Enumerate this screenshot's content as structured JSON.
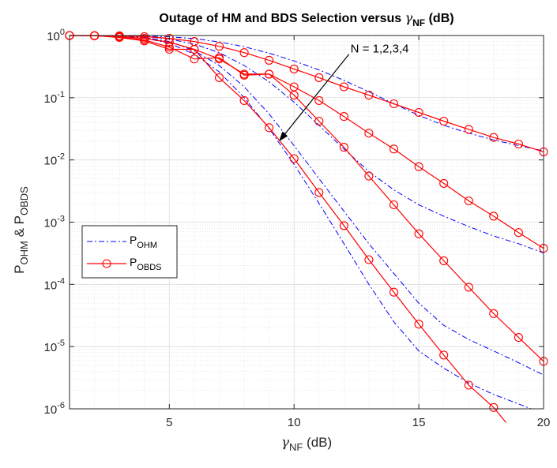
{
  "chart_data": {
    "type": "line",
    "title_parts": [
      "Outage of HM and BDS Selection versus ",
      "γ",
      "NF",
      " (dB)"
    ],
    "xlabel_parts": [
      "γ",
      "NF",
      " (dB)"
    ],
    "ylabel_parts": [
      "P",
      "OHM",
      " & P",
      "OBDS"
    ],
    "xlim": [
      1,
      20
    ],
    "ylim": [
      1e-06,
      1
    ],
    "yscale": "log",
    "xticks": [
      5,
      10,
      15,
      20
    ],
    "xtick_labels": [
      "5",
      "10",
      "15",
      "20"
    ],
    "yticks": [
      1,
      0.1,
      0.01,
      0.001,
      0.0001,
      1e-05,
      1e-06
    ],
    "ytick_labels": [
      {
        "base": "10",
        "exp": "0"
      },
      {
        "base": "10",
        "exp": "-1"
      },
      {
        "base": "10",
        "exp": "-2"
      },
      {
        "base": "10",
        "exp": "-3"
      },
      {
        "base": "10",
        "exp": "-4"
      },
      {
        "base": "10",
        "exp": "-5"
      },
      {
        "base": "10",
        "exp": "-6"
      }
    ],
    "grid": true,
    "legend_position": "mid-left",
    "legend": [
      {
        "base": "P",
        "sub": "OHM",
        "style": "dashdot",
        "color": "#0000ff"
      },
      {
        "base": "P",
        "sub": "OBDS",
        "style": "solid-circle",
        "color": "#ff0000"
      }
    ],
    "annotation": {
      "text": "N = 1,2,3,4",
      "arrow_from": [
        12.2,
        0.5
      ],
      "arrow_to": [
        9.4,
        0.02
      ]
    },
    "colors": {
      "ohm": "#0000ff",
      "obds": "#ff0000"
    },
    "series": [
      {
        "group": "OHM",
        "N": 1,
        "x": [
          1,
          2,
          3,
          4,
          5,
          6,
          7,
          8,
          9,
          10,
          11,
          12,
          13,
          14,
          15,
          16,
          17,
          18,
          19,
          20
        ],
        "y": [
          1.0,
          0.999,
          0.996,
          0.985,
          0.955,
          0.89,
          0.79,
          0.66,
          0.52,
          0.39,
          0.28,
          0.19,
          0.125,
          0.08,
          0.052,
          0.036,
          0.027,
          0.021,
          0.017,
          0.014
        ]
      },
      {
        "group": "OHM",
        "N": 2,
        "x": [
          1,
          2,
          3,
          4,
          5,
          6,
          7,
          8,
          9,
          10,
          11,
          12,
          13,
          14,
          15,
          16,
          17,
          18,
          19,
          20
        ],
        "y": [
          1.0,
          0.998,
          0.99,
          0.96,
          0.88,
          0.73,
          0.53,
          0.33,
          0.18,
          0.085,
          0.036,
          0.015,
          0.0065,
          0.0033,
          0.0019,
          0.00125,
          0.00085,
          0.0006,
          0.00045,
          0.00032
        ]
      },
      {
        "group": "OHM",
        "N": 3,
        "x": [
          1,
          2,
          3,
          4,
          5,
          6,
          7,
          8,
          9,
          10,
          11,
          12,
          13,
          14,
          15,
          16,
          17,
          18,
          19,
          20
        ],
        "y": [
          1.0,
          0.997,
          0.985,
          0.93,
          0.8,
          0.57,
          0.33,
          0.15,
          0.055,
          0.017,
          0.005,
          0.0015,
          0.00045,
          0.00015,
          5e-05,
          2.2e-05,
          1.3e-05,
          8.5e-06,
          5.5e-06,
          3.5e-06
        ]
      },
      {
        "group": "OHM",
        "N": 4,
        "x": [
          1,
          2,
          3,
          4,
          5,
          6,
          7,
          8,
          9,
          10,
          11,
          12,
          13,
          14,
          15,
          16,
          17,
          18,
          19,
          19.5
        ],
        "y": [
          1.0,
          0.996,
          0.98,
          0.91,
          0.75,
          0.5,
          0.26,
          0.1,
          0.032,
          0.0085,
          0.002,
          0.00045,
          0.0001,
          2.5e-05,
          8.5e-06,
          4.5e-06,
          2.6e-06,
          1.7e-06,
          1.2e-06,
          1e-06
        ]
      },
      {
        "group": "OBDS",
        "N": 1,
        "x": [
          1,
          2,
          3,
          4,
          5,
          6,
          7,
          8,
          9,
          10,
          11,
          12,
          13,
          14,
          15,
          16,
          17,
          18,
          19,
          20
        ],
        "y": [
          1.0,
          1.0,
          0.99,
          0.96,
          0.9,
          0.8,
          0.67,
          0.53,
          0.4,
          0.29,
          0.21,
          0.15,
          0.11,
          0.08,
          0.058,
          0.042,
          0.031,
          0.023,
          0.018,
          0.0135
        ]
      },
      {
        "group": "OBDS",
        "N": 2,
        "x": [
          1,
          2,
          3,
          4,
          5,
          6,
          7,
          8,
          9,
          10,
          11,
          12,
          13,
          14,
          15,
          16,
          17,
          18,
          19,
          20
        ],
        "y": [
          1.0,
          0.99,
          0.96,
          0.9,
          0.78,
          0.6,
          0.42,
          0.24,
          0.24,
          0.15,
          0.09,
          0.05,
          0.027,
          0.015,
          0.0078,
          0.0042,
          0.0022,
          0.00125,
          0.00068,
          0.00038
        ]
      },
      {
        "group": "OBDS",
        "N": 3,
        "x": [
          1,
          2,
          3,
          4,
          5,
          6,
          7,
          8,
          9,
          10,
          11,
          12,
          13,
          14,
          15,
          16,
          17,
          18,
          19,
          20
        ],
        "y": [
          1.0,
          0.99,
          0.95,
          0.85,
          0.65,
          0.42,
          0.44,
          0.23,
          0.24,
          0.11,
          0.042,
          0.016,
          0.0055,
          0.0019,
          0.00065,
          0.00024,
          9e-05,
          3.4e-05,
          1.4e-05,
          5.8e-06
        ]
      },
      {
        "group": "OBDS",
        "N": 4,
        "x": [
          1,
          2,
          3,
          4,
          5,
          6,
          7,
          8,
          9,
          10,
          11,
          12,
          13,
          14,
          15,
          16,
          17,
          18,
          18.5
        ],
        "y": [
          1.0,
          0.99,
          0.93,
          0.82,
          0.6,
          0.6,
          0.21,
          0.09,
          0.033,
          0.0105,
          0.003,
          0.00088,
          0.00025,
          7.5e-05,
          2.3e-05,
          7.3e-06,
          2.4e-06,
          1.05e-06,
          6e-07
        ]
      }
    ]
  }
}
